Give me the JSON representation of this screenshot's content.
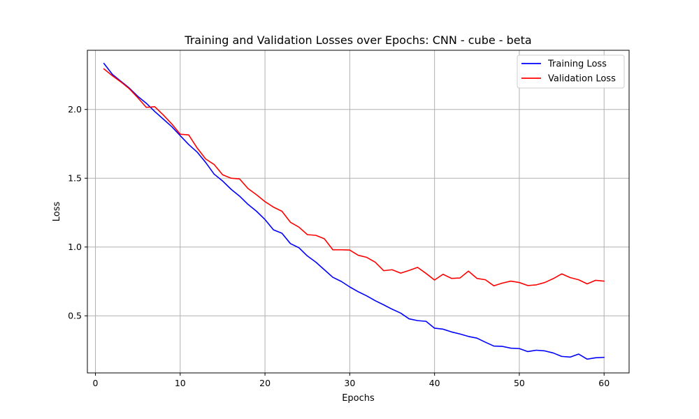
{
  "chart_data": {
    "type": "line",
    "title": "Training and Validation Losses over Epochs: CNN - cube - beta",
    "xlabel": "Epochs",
    "ylabel": "Loss",
    "xlim": [
      -0.95,
      62.95
    ],
    "ylim": [
      0.085,
      2.43
    ],
    "xticks": [
      0,
      10,
      20,
      30,
      40,
      50,
      60
    ],
    "yticks": [
      0.5,
      1.0,
      1.5,
      2.0
    ],
    "ytick_labels": [
      "0.5",
      "1.0",
      "1.5",
      "2.0"
    ],
    "grid": true,
    "legend_position": "top-right",
    "x": [
      1,
      2,
      3,
      4,
      5,
      6,
      7,
      8,
      9,
      10,
      11,
      12,
      13,
      14,
      15,
      16,
      17,
      18,
      19,
      20,
      21,
      22,
      23,
      24,
      25,
      26,
      27,
      28,
      29,
      30,
      31,
      32,
      33,
      34,
      35,
      36,
      37,
      38,
      39,
      40,
      41,
      42,
      43,
      44,
      45,
      46,
      47,
      48,
      49,
      50,
      51,
      52,
      53,
      54,
      55,
      56,
      57,
      58,
      59,
      60
    ],
    "series": [
      {
        "name": "Training Loss",
        "color": "#0000ff",
        "values": [
          2.335,
          2.255,
          2.205,
          2.155,
          2.095,
          2.045,
          1.985,
          1.93,
          1.875,
          1.81,
          1.745,
          1.69,
          1.615,
          1.53,
          1.48,
          1.42,
          1.37,
          1.31,
          1.26,
          1.2,
          1.125,
          1.1,
          1.025,
          0.995,
          0.935,
          0.89,
          0.835,
          0.78,
          0.75,
          0.71,
          0.675,
          0.645,
          0.61,
          0.58,
          0.548,
          0.52,
          0.478,
          0.465,
          0.46,
          0.41,
          0.403,
          0.383,
          0.368,
          0.35,
          0.338,
          0.308,
          0.28,
          0.278,
          0.265,
          0.262,
          0.24,
          0.25,
          0.245,
          0.23,
          0.205,
          0.2,
          0.222,
          0.185,
          0.195,
          0.198
        ]
      },
      {
        "name": "Validation Loss",
        "color": "#ff0000",
        "values": [
          2.295,
          2.245,
          2.2,
          2.15,
          2.085,
          2.015,
          2.02,
          1.96,
          1.895,
          1.82,
          1.815,
          1.72,
          1.64,
          1.6,
          1.525,
          1.5,
          1.495,
          1.425,
          1.38,
          1.33,
          1.29,
          1.26,
          1.18,
          1.145,
          1.09,
          1.085,
          1.06,
          0.98,
          0.98,
          0.978,
          0.94,
          0.925,
          0.89,
          0.828,
          0.835,
          0.81,
          0.83,
          0.852,
          0.808,
          0.76,
          0.802,
          0.772,
          0.775,
          0.825,
          0.772,
          0.762,
          0.718,
          0.738,
          0.752,
          0.742,
          0.72,
          0.725,
          0.742,
          0.77,
          0.805,
          0.778,
          0.762,
          0.732,
          0.758,
          0.752
        ]
      }
    ]
  }
}
